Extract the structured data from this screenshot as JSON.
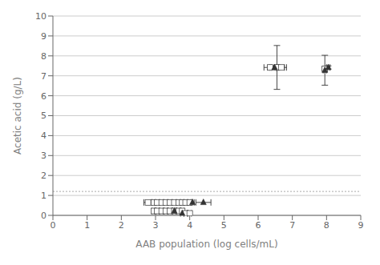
{
  "chart_data": {
    "type": "scatter",
    "xlabel": "AAB population (log cells/mL)",
    "ylabel": "Acetic acid (g/L)",
    "xlim": [
      0,
      9
    ],
    "ylim": [
      0,
      10
    ],
    "xticks": [
      0,
      1,
      2,
      3,
      4,
      5,
      6,
      7,
      8,
      9
    ],
    "yticks": [
      0,
      1,
      2,
      3,
      4,
      5,
      6,
      7,
      8,
      9,
      10
    ],
    "grid": "y",
    "reference_lines": [
      {
        "y": 1.2,
        "color": "#aaaaaa",
        "line_style": "dotted"
      }
    ],
    "series": [
      {
        "marker": "square_open",
        "color": "#333333",
        "x": [
          2.78,
          2.95,
          3.05,
          3.18,
          3.3,
          3.42,
          3.55,
          3.68,
          3.78,
          3.88,
          4.0
        ],
        "values": [
          0.65,
          0.65,
          0.65,
          0.65,
          0.65,
          0.65,
          0.65,
          0.65,
          0.65,
          0.65,
          0.65
        ],
        "xerr": [
          0.12,
          0.05,
          0.05,
          0.05,
          0.05,
          0.05,
          0.05,
          0.05,
          0.05,
          0.05,
          0.05
        ],
        "yerr": [
          0.0,
          0.0,
          0.0,
          0.0,
          0.0,
          0.0,
          0.0,
          0.0,
          0.0,
          0.0,
          0.0
        ]
      },
      {
        "marker": "square_open",
        "color": "#333333",
        "x": [
          2.95,
          3.05,
          3.18,
          3.3,
          3.42,
          3.55,
          3.68,
          3.78,
          3.88,
          4.0
        ],
        "values": [
          0.22,
          0.22,
          0.22,
          0.22,
          0.22,
          0.22,
          0.22,
          0.22,
          0.1,
          0.1
        ],
        "xerr": [
          0.05,
          0.05,
          0.05,
          0.05,
          0.05,
          0.05,
          0.05,
          0.05,
          0.05,
          0.05
        ],
        "yerr": [
          0.0,
          0.0,
          0.0,
          0.0,
          0.0,
          0.0,
          0.0,
          0.0,
          0.0,
          0.0
        ]
      },
      {
        "marker": "triangle",
        "color": "#333333",
        "x": [
          4.08,
          4.4
        ],
        "values": [
          0.65,
          0.65
        ],
        "xerr": [
          0.05,
          0.22
        ],
        "yerr": [
          0.0,
          0.0
        ]
      },
      {
        "marker": "triangle",
        "color": "#333333",
        "x": [
          3.55,
          3.78
        ],
        "values": [
          0.22,
          0.1
        ],
        "xerr": [
          0.05,
          0.05
        ],
        "yerr": [
          0.0,
          0.0
        ]
      },
      {
        "marker": "square_open",
        "color": "#333333",
        "x": [
          6.35,
          6.55,
          6.68,
          7.95
        ],
        "values": [
          7.42,
          7.42,
          7.42,
          7.35
        ],
        "xerr": [
          0.18,
          0.22,
          0.15,
          0.05
        ],
        "yerr": [
          0.08,
          1.1,
          0.08,
          0.08
        ]
      },
      {
        "marker": "triangle",
        "color": "#333333",
        "x": [
          6.48,
          7.95,
          8.05
        ],
        "values": [
          7.42,
          7.28,
          7.42
        ],
        "xerr": [
          0.1,
          0.05,
          0.05
        ],
        "yerr": [
          0.08,
          0.75,
          0.08
        ]
      }
    ]
  }
}
